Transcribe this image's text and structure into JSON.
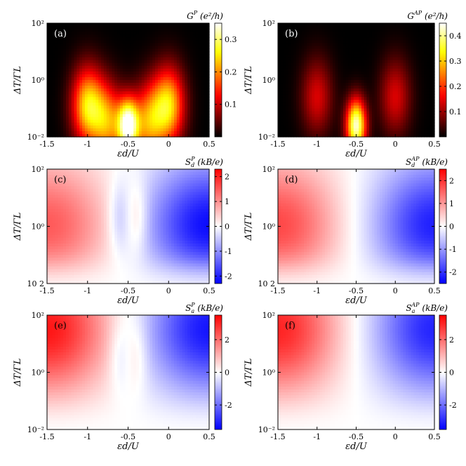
{
  "chart_data": [
    {
      "type": "heatmap",
      "panel_label": "(a)",
      "quantity": "G",
      "quantity_sup": "P",
      "quantity_units": "(e²/h)",
      "colormap": "hot",
      "xlabel": "εd/U",
      "ylabel": "ΔT/ΓL",
      "x_ticks": [
        "-1.5",
        "-1",
        "-0.5",
        "0",
        "0.5"
      ],
      "y_ticks": [
        "10⁻²",
        "10⁰",
        "10²"
      ],
      "xlim": [
        -1.5,
        0.5
      ],
      "ylim_log10": [
        -2,
        2
      ],
      "colorbar_ticks": [
        "0.3",
        "0.2",
        "0.1"
      ],
      "colorbar_range": [
        0,
        0.35
      ],
      "features": [
        {
          "x": -1.0,
          "logy_center": -0.9,
          "peak": 0.24
        },
        {
          "x": 0.0,
          "logy_center": -0.9,
          "peak": 0.24
        },
        {
          "x": -0.5,
          "logy_center": -1.6,
          "peak": 0.33
        },
        {
          "x": -0.75,
          "logy_center": -1.5,
          "peak": 0.19
        },
        {
          "x": -0.25,
          "logy_center": -1.5,
          "peak": 0.19
        }
      ]
    },
    {
      "type": "heatmap",
      "panel_label": "(b)",
      "quantity": "G",
      "quantity_sup": "AP",
      "quantity_units": "(e²/h)",
      "colormap": "hot",
      "xlabel": "εd/U",
      "ylabel": "ΔT/ΓL",
      "x_ticks": [
        "-1.5",
        "-1",
        "-0.5",
        "0",
        "0.5"
      ],
      "y_ticks": [
        "10⁻²",
        "10⁰",
        "10²"
      ],
      "xlim": [
        -1.5,
        0.5
      ],
      "ylim_log10": [
        -2,
        2
      ],
      "colorbar_ticks": [
        "0.4",
        "0.3",
        "0.2",
        "0.1"
      ],
      "colorbar_range": [
        0,
        0.45
      ],
      "features": [
        {
          "x": -1.0,
          "logy_center": -0.6,
          "peak": 0.14
        },
        {
          "x": 0.0,
          "logy_center": -0.6,
          "peak": 0.14
        },
        {
          "x": -0.5,
          "logy_center": -1.6,
          "peak": 0.43
        }
      ]
    },
    {
      "type": "heatmap",
      "panel_label": "(c)",
      "quantity": "S",
      "quantity_sub": "d",
      "quantity_sup": "P",
      "quantity_units": "(kB/e)",
      "colormap": "bwr",
      "xlabel": "εd/U",
      "ylabel": "ΔT/ΓL",
      "x_ticks": [
        "-1.5",
        "-1",
        "-0.5",
        "0",
        "0.5"
      ],
      "y_ticks": [
        "10 2",
        "10⁰",
        "10²"
      ],
      "xlim": [
        -1.5,
        0.5
      ],
      "ylim_log10": [
        -2,
        2
      ],
      "colorbar_ticks": [
        "2",
        "1",
        "0",
        "-1",
        "-2"
      ],
      "colorbar_range": [
        -2.3,
        2.3
      ],
      "features": [
        {
          "x": -1.5,
          "logy_center": 0.0,
          "peak": 1.5
        },
        {
          "x": 0.5,
          "logy_center": 0.0,
          "peak": -2.2
        },
        {
          "x": -0.62,
          "logy_center": 0.3,
          "peak": -0.5
        },
        {
          "x": -0.38,
          "logy_center": 0.3,
          "peak": 0.5
        }
      ]
    },
    {
      "type": "heatmap",
      "panel_label": "(d)",
      "quantity": "S",
      "quantity_sub": "d",
      "quantity_sup": "AP",
      "quantity_units": "(kB/e)",
      "colormap": "bwr",
      "xlabel": "εd/U",
      "ylabel": "ΔT/ΓL",
      "x_ticks": [
        "-1.5",
        "-1",
        "-0.5",
        "0",
        "0.5"
      ],
      "y_ticks": [
        "10 2",
        "10⁰",
        "10²"
      ],
      "xlim": [
        -1.5,
        0.5
      ],
      "ylim_log10": [
        -2,
        2
      ],
      "colorbar_ticks": [
        "2",
        "1",
        "0",
        "-1",
        "-2"
      ],
      "colorbar_range": [
        -2.5,
        2.5
      ],
      "features": [
        {
          "x": -1.5,
          "logy_center": 0.0,
          "peak": 1.8
        },
        {
          "x": 0.5,
          "logy_center": 0.0,
          "peak": -2.2
        }
      ]
    },
    {
      "type": "heatmap",
      "panel_label": "(e)",
      "quantity": "S",
      "quantity_sub": "a",
      "quantity_sup": "P",
      "quantity_units": "(kB/e)",
      "colormap": "bwr",
      "xlabel": "εd/U",
      "ylabel": "ΔT/ΓL",
      "x_ticks": [
        "-1.5",
        "-1",
        "-0.5",
        "0",
        "0.5"
      ],
      "y_ticks": [
        "10⁻²",
        "10⁰",
        "10²"
      ],
      "xlim": [
        -1.5,
        0.5
      ],
      "ylim_log10": [
        -2,
        2
      ],
      "colorbar_ticks": [
        "2",
        "0",
        "-2"
      ],
      "colorbar_range": [
        -3.5,
        3.5
      ],
      "features": [
        {
          "x": -1.5,
          "logy_center": 1.5,
          "peak": 3.2
        },
        {
          "x": 0.5,
          "logy_center": 1.5,
          "peak": -3.2
        },
        {
          "x": -0.62,
          "logy_center": 0.6,
          "peak": -0.5
        },
        {
          "x": -0.38,
          "logy_center": 0.6,
          "peak": 0.5
        }
      ]
    },
    {
      "type": "heatmap",
      "panel_label": "(f)",
      "quantity": "S",
      "quantity_sub": "a",
      "quantity_sup": "AP",
      "quantity_units": "(kB/e)",
      "colormap": "bwr",
      "xlabel": "εd/U",
      "ylabel": "ΔT/ΓL",
      "x_ticks": [
        "-1.5",
        "-1",
        "-0.5",
        "0",
        "0.5"
      ],
      "y_ticks": [
        "10⁻²",
        "10⁰",
        "10²"
      ],
      "xlim": [
        -1.5,
        0.5
      ],
      "ylim_log10": [
        -2,
        2
      ],
      "colorbar_ticks": [
        "2",
        "0",
        "-2"
      ],
      "colorbar_range": [
        -3.5,
        3.5
      ],
      "features": [
        {
          "x": -1.5,
          "logy_center": 1.5,
          "peak": 3.0
        },
        {
          "x": 0.5,
          "logy_center": 1.5,
          "peak": -3.0
        }
      ]
    }
  ]
}
